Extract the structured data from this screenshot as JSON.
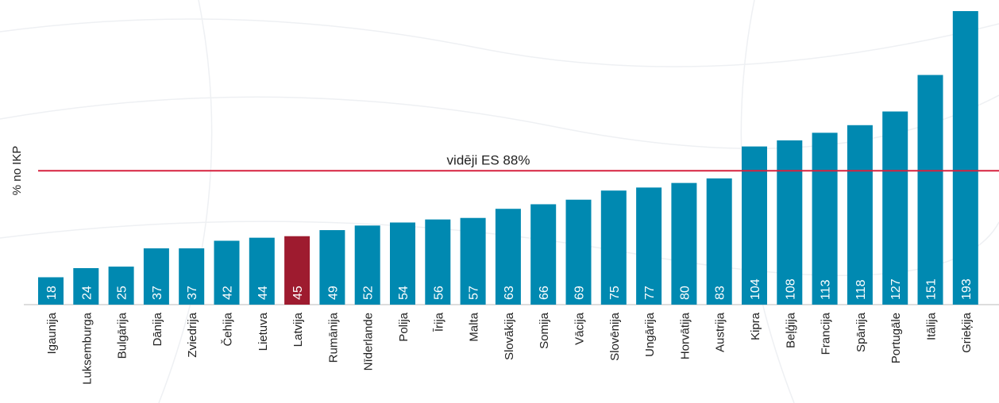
{
  "chart_data": {
    "type": "bar",
    "y_label": "% no IKP",
    "categories": [
      "Igaunija",
      "Luksemburga",
      "Bulgārija",
      "Dānija",
      "Zviedrija",
      "Čehija",
      "Lietuva",
      "Latvija",
      "Rumānija",
      "Nīderlande",
      "Polija",
      "Īrija",
      "Malta",
      "Slovākija",
      "Somija",
      "Vācija",
      "Slovēnija",
      "Ungārija",
      "Horvātija",
      "Austrija",
      "Kipra",
      "Beļģija",
      "Francija",
      "Spānija",
      "Portugāle",
      "Itālija",
      "Grieķija"
    ],
    "values": [
      18,
      24,
      25,
      37,
      37,
      42,
      44,
      45,
      49,
      52,
      54,
      56,
      57,
      63,
      66,
      69,
      75,
      77,
      80,
      83,
      104,
      108,
      113,
      118,
      127,
      151,
      193
    ],
    "colors": [
      "#0089b1",
      "#0089b1",
      "#0089b1",
      "#0089b1",
      "#0089b1",
      "#0089b1",
      "#0089b1",
      "#9e1b2f",
      "#0089b1",
      "#0089b1",
      "#0089b1",
      "#0089b1",
      "#0089b1",
      "#0089b1",
      "#0089b1",
      "#0089b1",
      "#0089b1",
      "#0089b1",
      "#0089b1",
      "#0089b1",
      "#0089b1",
      "#0089b1",
      "#0089b1",
      "#0089b1",
      "#0089b1",
      "#0089b1",
      "#0089b1"
    ],
    "ylim": [
      0,
      193
    ],
    "reference_line": {
      "value": 88,
      "label": "vidēji ES 88%",
      "color": "#d6223f"
    }
  }
}
